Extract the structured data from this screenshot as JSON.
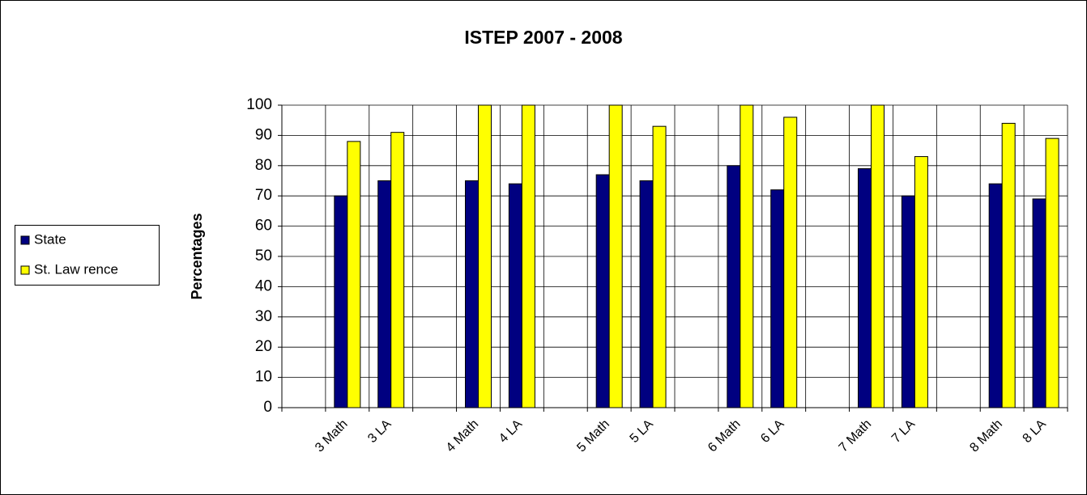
{
  "chart_data": {
    "type": "bar",
    "title": "ISTEP 2007 - 2008",
    "y_label": "Percentages",
    "categories": [
      null,
      "3 Math",
      "3 LA",
      null,
      "4 Math",
      "4 LA",
      null,
      "5 Math",
      "5 LA",
      null,
      "6 Math",
      "6 LA",
      null,
      "7 Math",
      "7 LA",
      null,
      "8 Math",
      "8 LA"
    ],
    "series": [
      {
        "name": "State",
        "color": "#000080",
        "values": [
          null,
          70,
          75,
          null,
          75,
          74,
          null,
          77,
          75,
          null,
          80,
          72,
          null,
          79,
          70,
          null,
          74,
          69
        ]
      },
      {
        "name": "St. Law rence",
        "color": "#ffff00",
        "values": [
          null,
          88,
          91,
          null,
          100,
          100,
          null,
          100,
          93,
          null,
          100,
          96,
          null,
          100,
          83,
          null,
          94,
          89
        ]
      }
    ],
    "ylim": [
      0,
      100
    ],
    "yticks": [
      0,
      10,
      20,
      30,
      40,
      50,
      60,
      70,
      80,
      90,
      100
    ],
    "grid": true,
    "legend": "left"
  }
}
